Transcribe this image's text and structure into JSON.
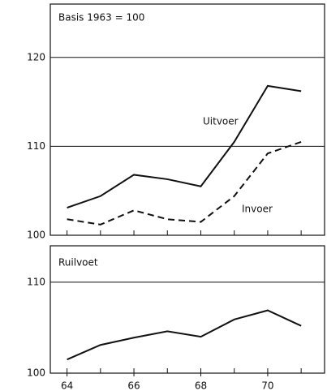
{
  "chart_data": [
    {
      "type": "line",
      "title": "Basis 1963 = 100",
      "x": [
        64,
        65,
        66,
        67,
        68,
        69,
        70,
        71
      ],
      "xlim": [
        63.5,
        71.7
      ],
      "ylim": [
        100,
        126
      ],
      "yticks": [
        100,
        110,
        120
      ],
      "grid": true,
      "series": [
        {
          "name": "Uitvoer",
          "color": "#111111",
          "dashed": false,
          "values": [
            103.1,
            104.4,
            106.8,
            106.3,
            105.5,
            110.5,
            116.8,
            116.2
          ]
        },
        {
          "name": "Invoer",
          "color": "#111111",
          "dashed": true,
          "values": [
            101.8,
            101.2,
            102.8,
            101.8,
            101.5,
            104.4,
            109.2,
            110.5
          ]
        }
      ]
    },
    {
      "type": "line",
      "title": "Ruilvoet",
      "x": [
        64,
        65,
        66,
        67,
        68,
        69,
        70,
        71
      ],
      "xlim": [
        63.5,
        71.7
      ],
      "xticks": [
        64,
        66,
        68,
        70
      ],
      "ylim": [
        100,
        114
      ],
      "yticks": [
        100,
        110
      ],
      "grid": true,
      "series": [
        {
          "color": "#111111",
          "dashed": false,
          "values": [
            101.5,
            103.1,
            103.9,
            104.6,
            104.0,
            105.9,
            106.9,
            105.2
          ]
        }
      ]
    }
  ]
}
